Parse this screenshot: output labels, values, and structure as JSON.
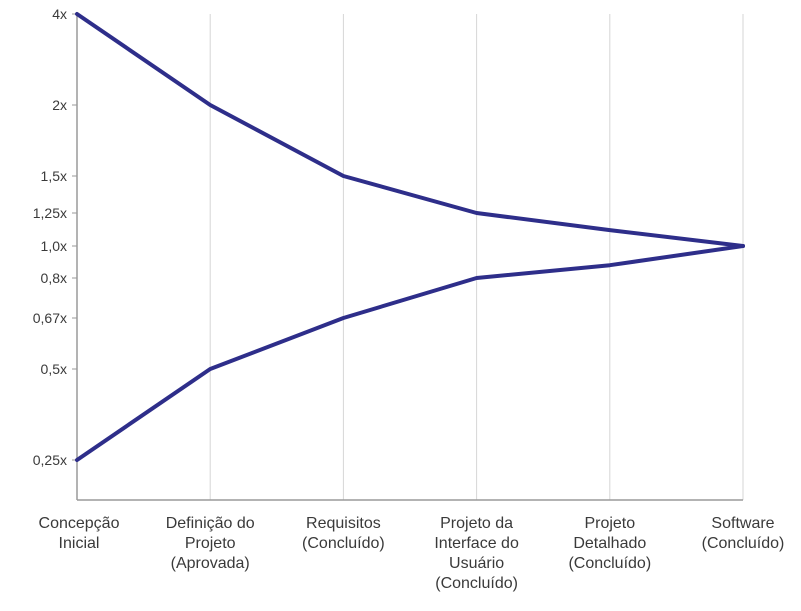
{
  "chart_data": {
    "type": "line",
    "title": "",
    "xlabel": "",
    "ylabel": "",
    "categories": [
      [
        "Concepção",
        "Inicial"
      ],
      [
        "Definição do",
        "Projeto",
        "(Aprovada)"
      ],
      [
        "Requisitos",
        "(Concluído)"
      ],
      [
        "Projeto da",
        "Interface do",
        "Usuário",
        "(Concluído)"
      ],
      [
        "Projeto",
        "Detalhado",
        "(Concluído)"
      ],
      [
        "Software",
        "(Concluído)"
      ]
    ],
    "y_ticks": [
      {
        "value": 4,
        "label": "4x"
      },
      {
        "value": 2,
        "label": "2x"
      },
      {
        "value": 1.5,
        "label": "1,5x"
      },
      {
        "value": 1.25,
        "label": "1,25x"
      },
      {
        "value": 1.0,
        "label": "1,0x"
      },
      {
        "value": 0.8,
        "label": "0,8x"
      },
      {
        "value": 0.67,
        "label": "0,67x"
      },
      {
        "value": 0.5,
        "label": "0,5x"
      },
      {
        "value": 0.25,
        "label": "0,25x"
      }
    ],
    "series": [
      {
        "values": [
          4,
          2,
          1.5,
          1.25,
          1.12,
          1.0
        ]
      },
      {
        "values": [
          0.25,
          0.5,
          0.67,
          0.8,
          0.88,
          1.0
        ]
      }
    ],
    "grid": true,
    "line_color": "#2e2e8a",
    "grid_color": "#d6d6d6",
    "axis_color": "#9a9a9a"
  }
}
